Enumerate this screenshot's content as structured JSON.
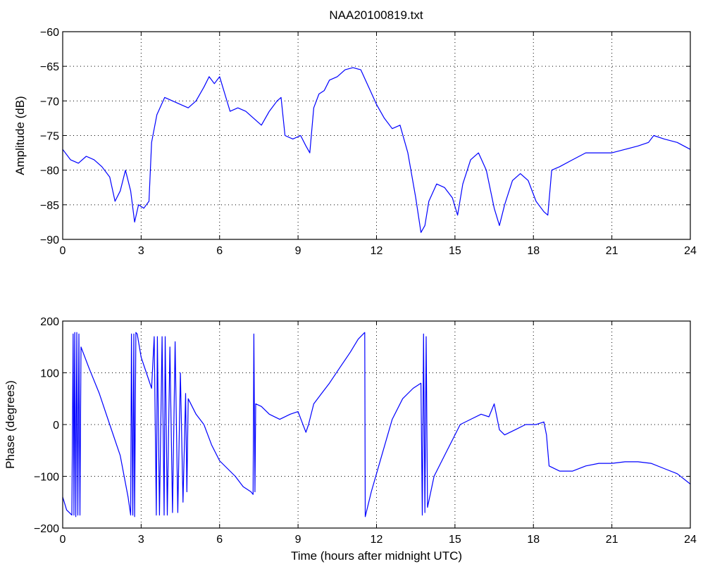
{
  "figure_title": "NAA20100819.txt",
  "colors": {
    "series": "#0000ff",
    "axes": "#000000",
    "background": "#ffffff"
  },
  "chart_data": [
    {
      "type": "line",
      "title": "NAA20100819.txt",
      "xlabel": "",
      "ylabel": "Amplitude (dB)",
      "xlim": [
        0,
        24
      ],
      "ylim": [
        -90,
        -60
      ],
      "xticks": [
        0,
        3,
        6,
        9,
        12,
        15,
        18,
        21,
        24
      ],
      "yticks": [
        -90,
        -85,
        -80,
        -75,
        -70,
        -65,
        -60
      ],
      "grid": true,
      "series": [
        {
          "x": [
            0,
            0.3,
            0.6,
            0.9,
            1.2,
            1.5,
            1.8,
            2.0,
            2.2,
            2.4,
            2.6,
            2.75,
            2.9,
            3.1,
            3.3,
            3.4,
            3.6,
            3.9,
            4.2,
            4.5,
            4.8,
            5.1,
            5.4,
            5.6,
            5.8,
            6.0,
            6.2,
            6.4,
            6.7,
            7.0,
            7.3,
            7.6,
            7.9,
            8.2,
            8.35,
            8.5,
            8.8,
            9.1,
            9.3,
            9.45,
            9.6,
            9.8,
            10.0,
            10.2,
            10.5,
            10.8,
            11.1,
            11.4,
            11.7,
            12.0,
            12.3,
            12.6,
            12.9,
            13.2,
            13.5,
            13.7,
            13.85,
            14.0,
            14.3,
            14.6,
            14.9,
            15.1,
            15.3,
            15.6,
            15.9,
            16.2,
            16.5,
            16.7,
            16.9,
            17.2,
            17.5,
            17.8,
            18.1,
            18.4,
            18.55,
            18.7,
            19.0,
            19.5,
            20.0,
            20.5,
            21.0,
            21.5,
            22.0,
            22.4,
            22.6,
            23.0,
            23.5,
            24.0
          ],
          "y": [
            -77,
            -78.5,
            -79,
            -78,
            -78.5,
            -79.5,
            -81,
            -84.5,
            -83,
            -80,
            -83,
            -87.5,
            -85,
            -85.5,
            -84.5,
            -76,
            -72,
            -69.5,
            -70,
            -70.5,
            -71,
            -70,
            -68,
            -66.5,
            -67.5,
            -66.5,
            -69,
            -71.5,
            -71,
            -71.5,
            -72.5,
            -73.5,
            -71.5,
            -70,
            -69.5,
            -75,
            -75.5,
            -75,
            -76.5,
            -77.5,
            -71,
            -69,
            -68.5,
            -67,
            -66.5,
            -65.5,
            -65.2,
            -65.5,
            -68,
            -70.5,
            -72.5,
            -74,
            -73.5,
            -77.5,
            -84,
            -89,
            -88,
            -84.5,
            -82,
            -82.5,
            -84,
            -86.5,
            -82,
            -78.5,
            -77.5,
            -80,
            -85.5,
            -88,
            -85,
            -81.5,
            -80.5,
            -81.5,
            -84.5,
            -86,
            -86.5,
            -80,
            -79.5,
            -78.5,
            -77.5,
            -77.5,
            -77.5,
            -77,
            -76.5,
            -76,
            -75,
            -75.5,
            -76,
            -77
          ]
        }
      ]
    },
    {
      "type": "line",
      "title": "",
      "xlabel": "Time (hours after midnight UTC)",
      "ylabel": "Phase (degrees)",
      "xlim": [
        0,
        24
      ],
      "ylim": [
        -200,
        200
      ],
      "xticks": [
        0,
        3,
        6,
        9,
        12,
        15,
        18,
        21,
        24
      ],
      "yticks": [
        -200,
        -100,
        0,
        100,
        200
      ],
      "grid": true,
      "series": [
        {
          "x": [
            0,
            0.15,
            0.35,
            0.4,
            0.43,
            0.46,
            0.5,
            0.54,
            0.58,
            0.62,
            0.66,
            0.7,
            1.0,
            1.4,
            1.8,
            2.2,
            2.5,
            2.6,
            2.63,
            2.68,
            2.72,
            2.75,
            2.8,
            2.85,
            3.0,
            3.2,
            3.4,
            3.5,
            3.58,
            3.62,
            3.7,
            3.8,
            3.88,
            3.92,
            4.0,
            4.1,
            4.2,
            4.3,
            4.4,
            4.5,
            4.6,
            4.7,
            4.75,
            4.8,
            5.1,
            5.4,
            5.7,
            6.0,
            6.3,
            6.6,
            6.9,
            7.2,
            7.28,
            7.31,
            7.35,
            7.38,
            7.6,
            7.9,
            8.3,
            8.7,
            9.0,
            9.15,
            9.3,
            9.4,
            9.6,
            9.9,
            10.2,
            10.6,
            11.0,
            11.3,
            11.55,
            11.57,
            11.8,
            12.2,
            12.6,
            13.0,
            13.4,
            13.7,
            13.75,
            13.8,
            13.85,
            13.9,
            13.95,
            14.2,
            14.6,
            14.9,
            15.2,
            15.6,
            16.0,
            16.3,
            16.5,
            16.7,
            16.9,
            17.3,
            17.7,
            18.1,
            18.4,
            18.5,
            18.6,
            19.0,
            19.5,
            20.0,
            20.5,
            21.0,
            21.5,
            22.0,
            22.5,
            23.0,
            23.5,
            24.0
          ],
          "y": [
            -140,
            -165,
            -175,
            175,
            -175,
            178,
            -178,
            178,
            -175,
            175,
            -175,
            150,
            110,
            60,
            0,
            -60,
            -140,
            -175,
            175,
            -175,
            175,
            -178,
            178,
            175,
            130,
            100,
            70,
            170,
            -175,
            170,
            -175,
            170,
            -175,
            170,
            -175,
            150,
            -170,
            160,
            -170,
            100,
            -150,
            60,
            -130,
            50,
            20,
            0,
            -40,
            -70,
            -85,
            -100,
            -120,
            -130,
            -135,
            175,
            -130,
            40,
            35,
            20,
            10,
            20,
            25,
            5,
            -15,
            0,
            40,
            60,
            80,
            110,
            140,
            165,
            178,
            -178,
            -130,
            -60,
            10,
            50,
            70,
            80,
            -175,
            175,
            -170,
            170,
            -160,
            -100,
            -60,
            -30,
            0,
            10,
            20,
            15,
            40,
            -10,
            -20,
            -10,
            0,
            0,
            5,
            -20,
            -80,
            -90,
            -90,
            -80,
            -75,
            -75,
            -72,
            -72,
            -75,
            -85,
            -95,
            -115
          ]
        }
      ]
    }
  ]
}
